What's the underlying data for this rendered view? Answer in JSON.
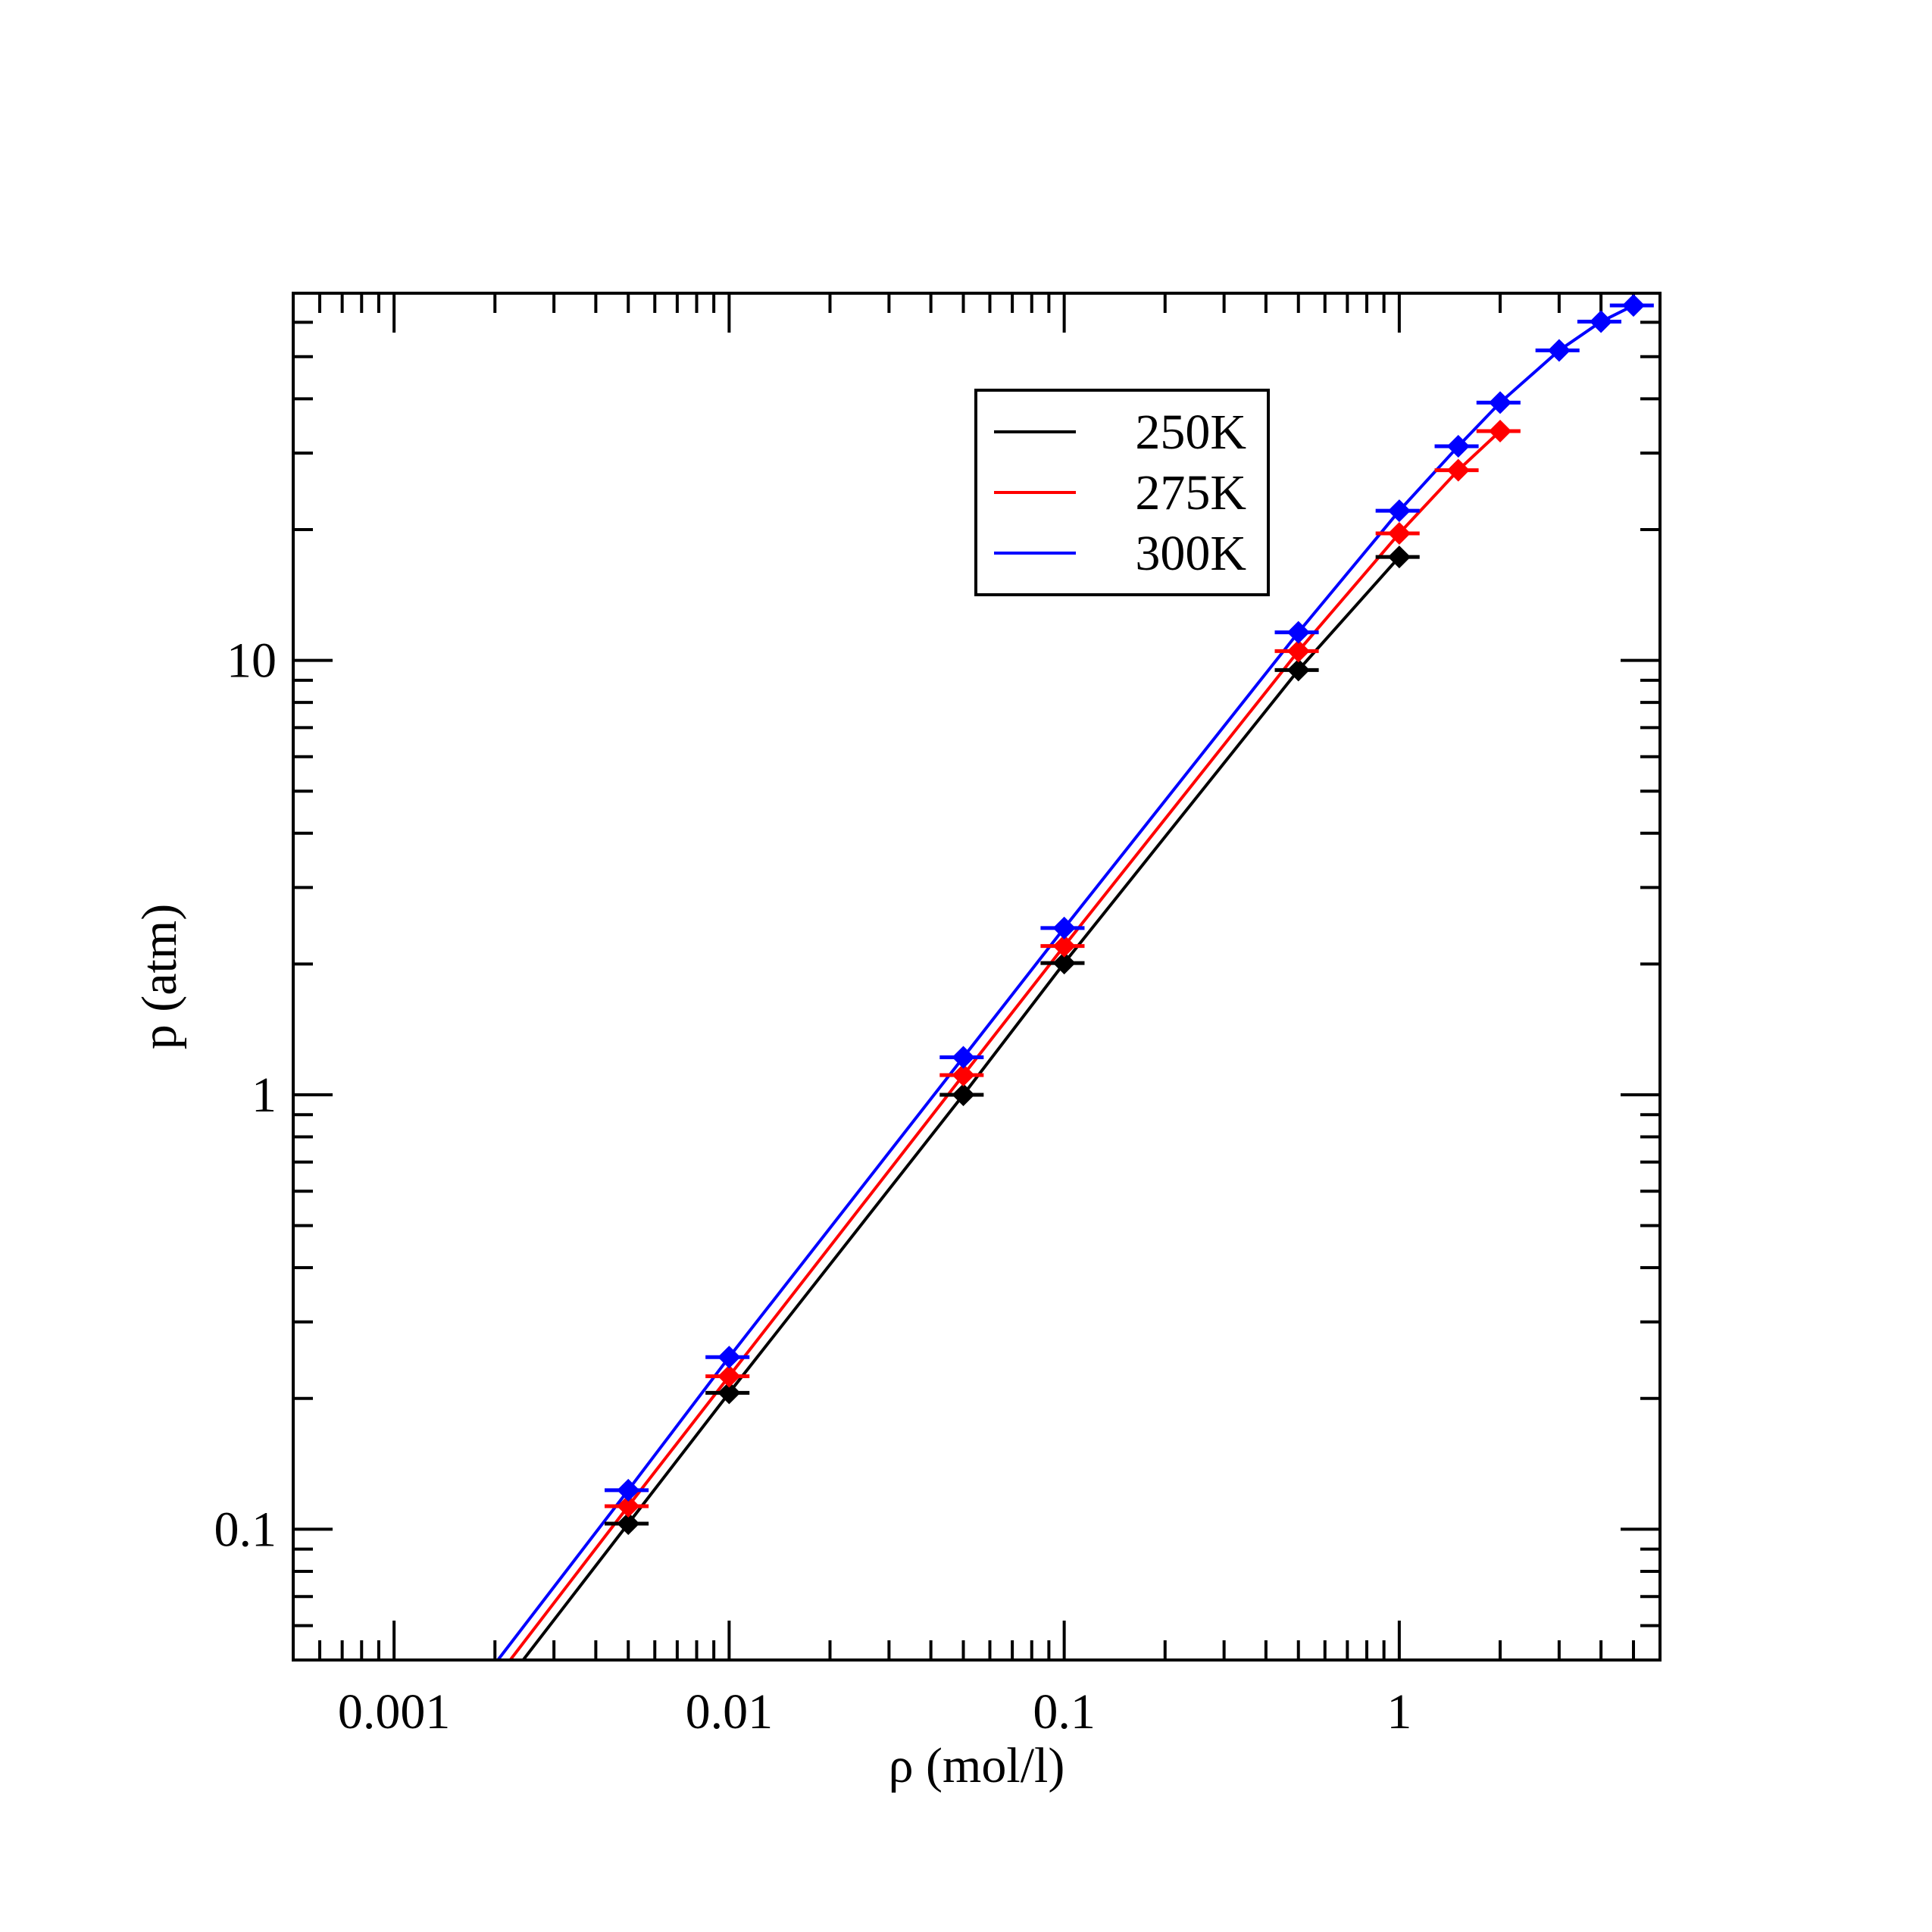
{
  "chart_data": {
    "type": "scatter",
    "title": "",
    "xlabel": "ρ (mol/l)",
    "ylabel": "p (atm)",
    "xscale": "log",
    "yscale": "log",
    "xlim": [
      0.0005,
      6
    ],
    "ylim": [
      0.05,
      70
    ],
    "xticks": [
      {
        "value": 0.001,
        "label": "0.001"
      },
      {
        "value": 0.01,
        "label": "0.01"
      },
      {
        "value": 0.1,
        "label": "0.1"
      },
      {
        "value": 1,
        "label": "1"
      }
    ],
    "yticks": [
      {
        "value": 0.1,
        "label": "0.1"
      },
      {
        "value": 1,
        "label": "1"
      },
      {
        "value": 10,
        "label": "10"
      }
    ],
    "grid": false,
    "legend_position": "upper-center-right",
    "xerr_relative": 0.15,
    "series": [
      {
        "name": "250K",
        "color": "#000000",
        "x": [
          0.005,
          0.01,
          0.05,
          0.1,
          0.5,
          1
        ],
        "y": [
          0.103,
          0.206,
          1.0,
          2.01,
          9.5,
          17.3
        ],
        "line_start": [
          0.002,
          0.0412
        ]
      },
      {
        "name": "275K",
        "color": "#ff0000",
        "x": [
          0.005,
          0.01,
          0.05,
          0.1,
          0.5,
          1,
          1.5,
          2
        ],
        "y": [
          0.113,
          0.225,
          1.11,
          2.2,
          10.5,
          19.6,
          27.4,
          33.7
        ],
        "line_start": [
          0.002,
          0.045
        ]
      },
      {
        "name": "300K",
        "color": "#0000ff",
        "x": [
          0.005,
          0.01,
          0.05,
          0.1,
          0.5,
          1,
          1.5,
          2,
          3,
          4,
          5
        ],
        "y": [
          0.123,
          0.249,
          1.22,
          2.42,
          11.6,
          22.1,
          31.1,
          39.2,
          51.7,
          60.2,
          65.6
        ],
        "line_start": [
          0.002,
          0.049
        ]
      }
    ]
  }
}
